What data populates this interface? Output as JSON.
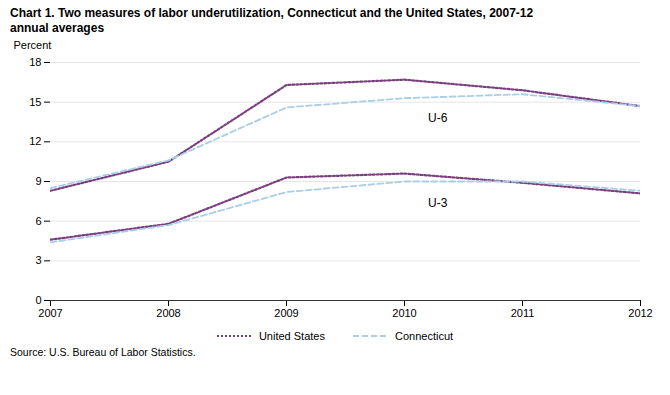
{
  "chart_data": {
    "type": "line",
    "title": "Chart 1. Two measures of labor underutilization, Connecticut and the United States, 2007-12",
    "subtitle": "annual averages",
    "source": "Source:  U.S. Bureau of Labor Statistics.",
    "y_label": "Percent",
    "x": [
      2007,
      2008,
      2009,
      2010,
      2011,
      2012
    ],
    "series": [
      {
        "name": "United States",
        "color": "#7B3F7F",
        "line_style": "dotted",
        "values": [
          8.3,
          10.5,
          16.3,
          16.7,
          15.9,
          14.7
        ]
      },
      {
        "name": "United States",
        "color": "#7B3F7F",
        "line_style": "dotted",
        "values": [
          4.6,
          5.8,
          9.3,
          9.6,
          8.9,
          8.1
        ]
      },
      {
        "name": "Connecticut",
        "color": "#AACDE8",
        "line_style": "dashed",
        "values": [
          8.5,
          10.6,
          14.6,
          15.3,
          15.6,
          14.7
        ]
      },
      {
        "name": "Connecticut",
        "color": "#AACDE8",
        "line_style": "dashed",
        "values": [
          4.4,
          5.7,
          8.2,
          9.0,
          9.0,
          8.3
        ]
      }
    ],
    "annotations": [
      {
        "text": "U-6",
        "x": 2010.2,
        "y": 13.8
      },
      {
        "text": "U-3",
        "x": 2010.2,
        "y": 7.35
      }
    ],
    "xlim": [
      2007,
      2012
    ],
    "xticks": [
      2007,
      2008,
      2009,
      2010,
      2011,
      2012
    ],
    "ylim": [
      0,
      18
    ],
    "yticks": [
      0,
      3,
      6,
      9,
      12,
      15,
      18
    ],
    "grid": true,
    "legend": "bottom"
  }
}
